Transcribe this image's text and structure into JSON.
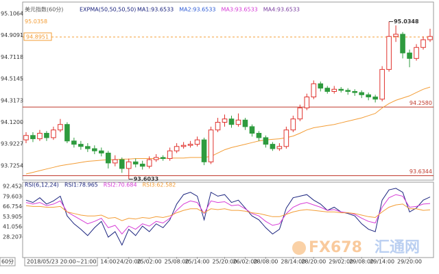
{
  "chart_data": [
    {
      "type": "candlestick",
      "title": "美元指数(60分)",
      "indicator": "EXPMA(50,50,50,50)",
      "legend": [
        {
          "text": "MA1:93.6533",
          "color": "#1a237e"
        },
        {
          "text": "MA2:93.6533",
          "color": "#2e5cd6"
        },
        {
          "text": "MA3:93.6533",
          "color": "#d63ad6"
        },
        {
          "text": "MA4:93.6533",
          "color": "#7b3fa0"
        }
      ],
      "up_color": "#e0302b",
      "down_color": "#2e9b3e",
      "overlay_color": "#f39c34",
      "open": [
        93.96,
        94.0,
        93.97,
        94.02,
        93.98,
        94.05,
        94.1,
        93.95,
        93.92,
        93.9,
        93.88,
        93.86,
        93.84,
        93.75,
        93.78,
        93.7,
        93.76,
        93.74,
        93.72,
        93.78,
        93.8,
        93.79,
        93.86,
        93.9,
        93.91,
        93.92,
        93.96,
        93.76,
        94.05,
        94.12,
        94.15,
        94.1,
        94.14,
        94.08,
        94.02,
        93.98,
        93.92,
        93.88,
        93.9,
        94.05,
        94.15,
        94.25,
        94.35,
        94.47,
        94.43,
        94.4,
        94.42,
        94.41,
        94.4,
        94.39,
        94.37,
        94.35,
        94.33,
        94.6,
        94.9,
        94.92,
        94.75,
        94.7,
        94.8,
        94.87
      ],
      "high": [
        94.03,
        94.03,
        94.05,
        94.04,
        94.08,
        94.15,
        94.12,
        93.98,
        93.95,
        93.93,
        93.91,
        93.89,
        93.86,
        93.82,
        93.8,
        93.79,
        93.79,
        93.77,
        93.81,
        93.83,
        93.82,
        93.89,
        93.93,
        93.94,
        93.95,
        93.99,
        93.98,
        94.08,
        94.16,
        94.19,
        94.18,
        94.2,
        94.16,
        94.1,
        94.04,
        94.0,
        93.94,
        93.93,
        94.08,
        94.18,
        94.28,
        94.38,
        94.5,
        94.49,
        94.45,
        94.45,
        94.44,
        94.43,
        94.42,
        94.41,
        94.39,
        94.37,
        94.63,
        95.0348,
        95.0,
        94.94,
        94.78,
        94.83,
        94.9,
        94.97
      ],
      "low": [
        93.93,
        93.94,
        93.95,
        93.95,
        93.96,
        94.03,
        93.93,
        93.89,
        93.87,
        93.85,
        93.83,
        93.81,
        93.7,
        93.72,
        93.66,
        93.6033,
        93.71,
        93.69,
        93.7,
        93.76,
        93.77,
        93.77,
        93.84,
        93.88,
        93.89,
        93.9,
        93.73,
        93.74,
        94.03,
        94.08,
        94.07,
        94.08,
        94.05,
        93.99,
        93.95,
        93.89,
        93.86,
        93.86,
        93.88,
        94.03,
        94.13,
        94.23,
        94.33,
        94.4,
        94.38,
        94.38,
        94.39,
        94.37,
        94.36,
        94.34,
        94.32,
        94.3,
        94.31,
        94.58,
        94.85,
        94.7,
        94.62,
        94.68,
        94.78,
        94.85
      ],
      "close": [
        94.0,
        93.97,
        94.02,
        93.98,
        94.05,
        94.1,
        93.95,
        93.92,
        93.9,
        93.88,
        93.86,
        93.84,
        93.75,
        93.78,
        93.7,
        93.76,
        93.74,
        93.72,
        93.78,
        93.8,
        93.79,
        93.86,
        93.9,
        93.91,
        93.92,
        93.96,
        93.76,
        94.05,
        94.12,
        94.15,
        94.1,
        94.14,
        94.08,
        94.02,
        93.98,
        93.92,
        93.88,
        93.9,
        94.05,
        94.15,
        94.25,
        94.35,
        94.47,
        94.43,
        94.4,
        94.42,
        94.41,
        94.4,
        94.39,
        94.37,
        94.35,
        94.33,
        94.6,
        94.9,
        94.92,
        94.75,
        94.7,
        94.8,
        94.87,
        94.9
      ],
      "overlay": [
        93.65,
        93.665,
        93.68,
        93.695,
        93.71,
        93.725,
        93.735,
        93.745,
        93.755,
        93.765,
        93.77,
        93.775,
        93.78,
        93.78,
        93.785,
        93.785,
        93.79,
        93.79,
        93.79,
        93.79,
        93.79,
        93.795,
        93.795,
        93.795,
        93.8,
        93.8,
        93.8,
        93.81,
        93.84,
        93.87,
        93.89,
        93.905,
        93.92,
        93.935,
        93.95,
        93.96,
        93.965,
        93.97,
        93.98,
        93.995,
        94.02,
        94.05,
        94.07,
        94.08,
        94.09,
        94.1,
        94.115,
        94.13,
        94.145,
        94.16,
        94.18,
        94.2,
        94.25,
        94.29,
        94.32,
        94.34,
        94.36,
        94.39,
        94.42,
        94.44
      ],
      "ylim": [
        93.6,
        95.2
      ],
      "yticks": [
        95.1064,
        94.9091,
        94.7118,
        94.5145,
        94.3173,
        {
          "value": 94.12,
          "label": "94.1200"
        },
        93.9227,
        93.7254
      ],
      "xticks": [
        {
          "value": 12,
          "label": "14:00"
        },
        {
          "value": 15,
          "label": "24/20:00"
        },
        {
          "value": 18,
          "label": "25/02:00"
        },
        {
          "value": 22,
          "label": "25/08:00"
        },
        {
          "value": 25,
          "label": "25/14:00"
        },
        {
          "value": 29,
          "label": "25/20:00"
        },
        {
          "value": 32,
          "label": "26/02:00"
        },
        {
          "value": 35,
          "label": "28/08:00"
        },
        {
          "value": 39,
          "label": "28/14:00"
        },
        {
          "value": 42,
          "label": "28/20:00"
        },
        {
          "value": 46,
          "label": "29/02:00"
        },
        {
          "value": 49,
          "label": "29/08:00"
        },
        {
          "value": 52,
          "label": "29/14:00"
        },
        {
          "value": 56,
          "label": "29/20:00"
        }
      ],
      "levels": [
        {
          "value": 94.258,
          "label": "94.2580",
          "color": "#c0392b",
          "style": "solid",
          "side": "right"
        },
        {
          "value": 93.6344,
          "label": "93.6344",
          "color": "#c0392b",
          "style": "solid",
          "side": "right"
        },
        {
          "value": 94.8951,
          "label": "94.8951",
          "color": "#f39c34",
          "style": "dashed",
          "side": "left"
        }
      ],
      "annotations": [
        {
          "value": 95.0348,
          "label": "95.0348",
          "index": 53
        },
        {
          "value": 93.6033,
          "label": "93.6033",
          "index": 15
        }
      ],
      "price_label": {
        "value": 95.0358,
        "label": "95.0358"
      },
      "cursor_label": "2018/05/23 20:00~21:00",
      "period_label": "60分",
      "watermark": {
        "brand": "FX678",
        "site": "汇通网"
      }
    },
    {
      "type": "line",
      "title": "RSI(6,12,24)",
      "series": [
        {
          "name": "RSI1:78.965",
          "color": "#1a237e",
          "values": [
            75,
            72,
            78,
            70,
            74,
            80,
            55,
            45,
            38,
            30,
            40,
            48,
            28,
            35,
            18,
            38,
            30,
            42,
            35,
            45,
            40,
            50,
            70,
            82,
            85,
            80,
            50,
            85,
            80,
            82,
            72,
            75,
            65,
            55,
            50,
            40,
            32,
            38,
            65,
            78,
            80,
            82,
            75,
            70,
            62,
            66,
            60,
            58,
            55,
            45,
            38,
            35,
            75,
            88,
            90,
            85,
            60,
            65,
            75,
            78.965
          ]
        },
        {
          "name": "RSI2:70.684",
          "color": "#d63ad6",
          "values": [
            72,
            70,
            72,
            68,
            70,
            74,
            60,
            55,
            50,
            45,
            48,
            52,
            40,
            43,
            32,
            42,
            38,
            45,
            42,
            48,
            46,
            52,
            62,
            70,
            74,
            72,
            58,
            74,
            72,
            73,
            68,
            69,
            64,
            58,
            55,
            48,
            43,
            45,
            58,
            66,
            70,
            72,
            69,
            66,
            62,
            63,
            60,
            59,
            57,
            52,
            48,
            46,
            66,
            78,
            82,
            80,
            66,
            67,
            70,
            70.684
          ]
        },
        {
          "name": "RSI3:62.582",
          "color": "#f39c34",
          "values": [
            68,
            67,
            67,
            66,
            66,
            67,
            60,
            58,
            56,
            55,
            55,
            56,
            52,
            53,
            49,
            52,
            51,
            53,
            52,
            54,
            53,
            55,
            59,
            62,
            64,
            64,
            59,
            64,
            63,
            64,
            62,
            62,
            61,
            59,
            58,
            56,
            54,
            54,
            57,
            60,
            62,
            63,
            62,
            61,
            60,
            60,
            59,
            59,
            58,
            56,
            54,
            53,
            60,
            66,
            69,
            70,
            64,
            64,
            62,
            62.582
          ]
        }
      ],
      "ylim": [
        3,
        96
      ],
      "yticks": [
        92.452,
        79.603,
        66.754,
        53.905,
        41.056,
        28.207
      ]
    }
  ]
}
